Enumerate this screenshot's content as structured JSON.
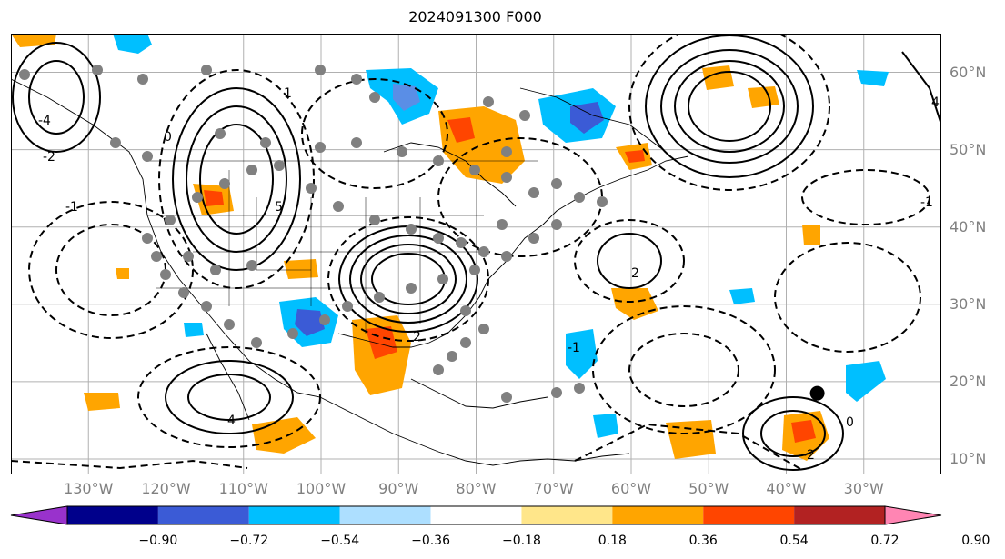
{
  "title": "2024091300 F000",
  "map": {
    "lat_labels": [
      {
        "text": "60°N",
        "lat": 60
      },
      {
        "text": "50°N",
        "lat": 50
      },
      {
        "text": "40°N",
        "lat": 40
      },
      {
        "text": "30°N",
        "lat": 30
      },
      {
        "text": "20°N",
        "lat": 20
      },
      {
        "text": "10°N",
        "lat": 10
      }
    ],
    "lon_labels": [
      {
        "text": "130°W",
        "lon": -130
      },
      {
        "text": "120°W",
        "lon": -120
      },
      {
        "text": "110°W",
        "lon": -110
      },
      {
        "text": "100°W",
        "lon": -100
      },
      {
        "text": "90°W",
        "lon": -90
      },
      {
        "text": "80°W",
        "lon": -80
      },
      {
        "text": "70°W",
        "lon": -70
      },
      {
        "text": "60°W",
        "lon": -60
      },
      {
        "text": "50°W",
        "lon": -50
      },
      {
        "text": "40°W",
        "lon": -40
      },
      {
        "text": "30°W",
        "lon": -30
      }
    ],
    "extent": {
      "lon_min": -140,
      "lon_max": -20,
      "lat_min": 8,
      "lat_max": 65
    },
    "storm_marker": {
      "lon": -36,
      "lat": 18.5,
      "color": "#000000"
    },
    "observation_point_color": "#808080",
    "contour_labels_visible": [
      "-4",
      "-2",
      "-1",
      "0",
      "1",
      "2",
      "4",
      "5",
      "-1",
      "2",
      "0",
      "-2",
      "4",
      "-1"
    ]
  },
  "colorbar": {
    "colors": [
      "#9932cc",
      "#00008b",
      "#3b5bd6",
      "#00bfff",
      "#addfff",
      "#ffffff",
      "#ffe68a",
      "#ffa500",
      "#ff4500",
      "#b22222",
      "#ff85b3"
    ],
    "tick_labels": [
      "−0.90",
      "−0.72",
      "−0.54",
      "−0.36",
      "−0.18",
      "0.18",
      "0.36",
      "0.54",
      "0.72",
      "0.90"
    ]
  }
}
